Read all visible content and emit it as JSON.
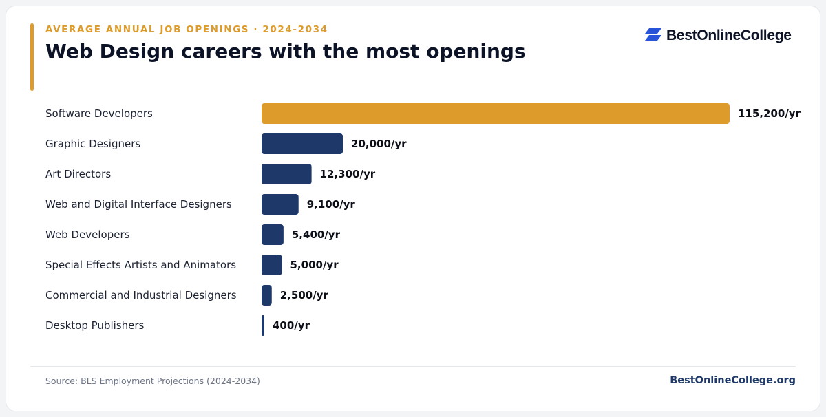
{
  "header": {
    "kicker": "AVERAGE ANNUAL JOB OPENINGS · 2024-2034",
    "title": "Web Design careers with the most openings"
  },
  "brand": {
    "logo_text": "BestOnlineCollege",
    "icon": "bestonlinecollege-logo-icon"
  },
  "footer": {
    "source": "Source: BLS Employment Projections (2024-2034)",
    "site": "BestOnlineCollege.org"
  },
  "colors": {
    "highlight": "#dc9b2a",
    "bar": "#1d3869",
    "title": "#0c1326",
    "label": "#1c2233",
    "value": "#0c0f17",
    "source": "#6b7385",
    "site": "#1d3869",
    "divider": "#e3e6ea",
    "logo_blue": "#2754d8"
  },
  "chart_data": {
    "type": "bar",
    "orientation": "horizontal",
    "categories": [
      "Software Developers",
      "Graphic Designers",
      "Art Directors",
      "Web and Digital Interface Designers",
      "Web Developers",
      "Special Effects Artists and Animators",
      "Commercial and Industrial Designers",
      "Desktop Publishers"
    ],
    "values": [
      115200,
      20000,
      12300,
      9100,
      5400,
      5000,
      2500,
      400
    ],
    "value_labels": [
      "115,200/yr",
      "20,000/yr",
      "12,300/yr",
      "9,100/yr",
      "5,400/yr",
      "5,000/yr",
      "2,500/yr",
      "400/yr"
    ],
    "highlighted_index": 0,
    "xlim": [
      0,
      115200
    ],
    "grid": false,
    "legend": "none"
  }
}
